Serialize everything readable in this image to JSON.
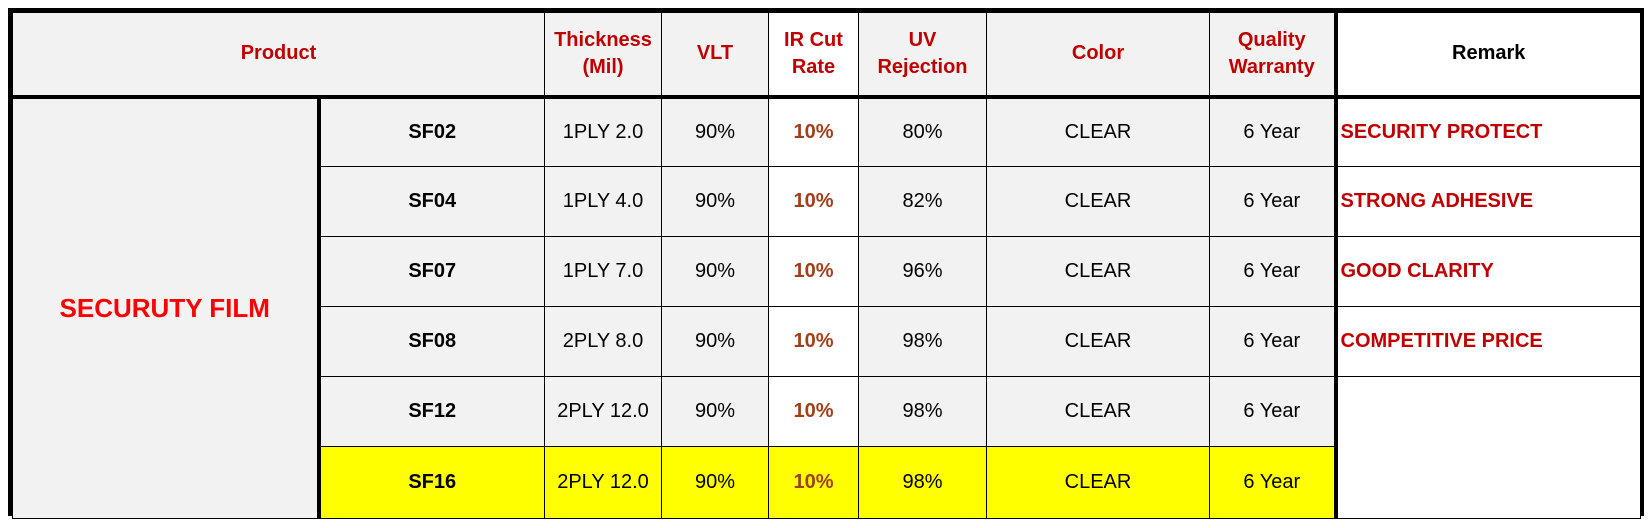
{
  "headers": {
    "product": "Product",
    "thickness": "Thickness\n(Mil)",
    "vlt": "VLT",
    "ir_cut": "IR Cut\nRate",
    "uv_rejection": "UV\nRejection",
    "color": "Color",
    "warranty": "Quality\nWarranty",
    "remark": "Remark"
  },
  "category": "SECURUTY FILM",
  "rows": [
    {
      "model": "SF02",
      "thickness": "1PLY 2.0",
      "vlt": "90%",
      "ir_cut": "10%",
      "uv": "80%",
      "color": "CLEAR",
      "warranty": "6 Year",
      "remark": "SECURITY PROTECT"
    },
    {
      "model": "SF04",
      "thickness": "1PLY 4.0",
      "vlt": "90%",
      "ir_cut": "10%",
      "uv": "82%",
      "color": "CLEAR",
      "warranty": "6 Year",
      "remark": "STRONG ADHESIVE"
    },
    {
      "model": "SF07",
      "thickness": "1PLY 7.0",
      "vlt": "90%",
      "ir_cut": "10%",
      "uv": "96%",
      "color": "CLEAR",
      "warranty": "6 Year",
      "remark": "GOOD CLARITY"
    },
    {
      "model": "SF08",
      "thickness": "2PLY 8.0",
      "vlt": "90%",
      "ir_cut": "10%",
      "uv": "98%",
      "color": "CLEAR",
      "warranty": "6 Year",
      "remark": "COMPETITIVE PRICE"
    },
    {
      "model": "SF12",
      "thickness": "2PLY 12.0",
      "vlt": "90%",
      "ir_cut": "10%",
      "uv": "98%",
      "color": "CLEAR",
      "warranty": "6 Year",
      "remark": ""
    },
    {
      "model": "SF16",
      "thickness": "2PLY 12.0",
      "vlt": "90%",
      "ir_cut": "10%",
      "uv": "98%",
      "color": "CLEAR",
      "warranty": "6 Year",
      "remark": ""
    }
  ],
  "colors": {
    "header_text": "#c00000",
    "category_text": "#ff0000",
    "ir_cut_text": "#a0401a",
    "remark_text": "#c00000",
    "highlight_row": "#ffff00",
    "cell_background": "#f2f2f2"
  }
}
